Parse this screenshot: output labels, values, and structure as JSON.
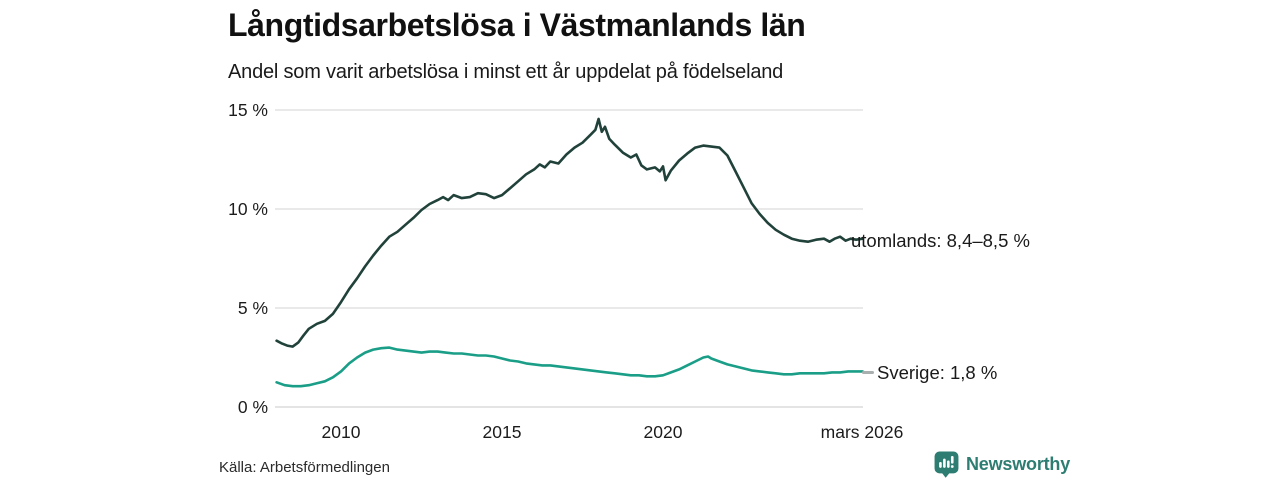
{
  "title": "Långtidsarbetslösa i Västmanlands län",
  "subtitle": "Andel som varit arbetslösa i minst ett år uppdelat på födelseland",
  "source": "Källa: Arbetsförmedlingen",
  "branding": {
    "name": "Newsworthy",
    "icon": "newsworthy-speech-bubble-barchart-icon",
    "color": "#2e7d73"
  },
  "colors": {
    "utomlands_line": "#21423a",
    "sverige_line": "#1a9e87",
    "grid": "#dcdcdc",
    "connector": "#a9aeae",
    "text": "#1a1a1a",
    "background": "#ffffff"
  },
  "chart_data": {
    "type": "line",
    "title": "Långtidsarbetslösa i Västmanlands län",
    "subtitle": "Andel som varit arbetslösa i minst ett år uppdelat på födelseland",
    "unit": "%",
    "grid": "horizontal",
    "legend_position": "line-end-labels",
    "x_axis": {
      "ticks": [
        "2010",
        "2015",
        "2020",
        "mars 2026"
      ],
      "tick_years": [
        2010,
        2015,
        2020,
        2026.2
      ],
      "range": [
        2008.0,
        2026.35
      ]
    },
    "y_axis": {
      "ticks": [
        "15 %",
        "10 %",
        "5 %",
        "0 %"
      ],
      "tick_values": [
        15,
        10,
        5,
        0
      ],
      "range": [
        0,
        15
      ]
    },
    "series": [
      {
        "name": "utomlands",
        "label": "utomlands: 8,4–8,5 %",
        "last_value_text": "8,4–8,5 %",
        "color": "#21423a",
        "points": [
          [
            2008.0,
            3.35
          ],
          [
            2008.17,
            3.2
          ],
          [
            2008.33,
            3.1
          ],
          [
            2008.5,
            3.05
          ],
          [
            2008.67,
            3.25
          ],
          [
            2008.83,
            3.6
          ],
          [
            2009.0,
            3.95
          ],
          [
            2009.25,
            4.2
          ],
          [
            2009.5,
            4.35
          ],
          [
            2009.75,
            4.7
          ],
          [
            2010.0,
            5.3
          ],
          [
            2010.25,
            5.95
          ],
          [
            2010.5,
            6.5
          ],
          [
            2010.75,
            7.1
          ],
          [
            2011.0,
            7.65
          ],
          [
            2011.25,
            8.15
          ],
          [
            2011.5,
            8.6
          ],
          [
            2011.75,
            8.85
          ],
          [
            2012.0,
            9.2
          ],
          [
            2012.25,
            9.55
          ],
          [
            2012.5,
            9.95
          ],
          [
            2012.75,
            10.25
          ],
          [
            2013.0,
            10.45
          ],
          [
            2013.17,
            10.6
          ],
          [
            2013.33,
            10.45
          ],
          [
            2013.5,
            10.7
          ],
          [
            2013.75,
            10.55
          ],
          [
            2014.0,
            10.6
          ],
          [
            2014.25,
            10.8
          ],
          [
            2014.5,
            10.75
          ],
          [
            2014.75,
            10.55
          ],
          [
            2015.0,
            10.7
          ],
          [
            2015.25,
            11.05
          ],
          [
            2015.5,
            11.4
          ],
          [
            2015.75,
            11.75
          ],
          [
            2016.0,
            12.0
          ],
          [
            2016.17,
            12.25
          ],
          [
            2016.33,
            12.1
          ],
          [
            2016.5,
            12.4
          ],
          [
            2016.75,
            12.3
          ],
          [
            2017.0,
            12.75
          ],
          [
            2017.25,
            13.1
          ],
          [
            2017.5,
            13.35
          ],
          [
            2017.75,
            13.75
          ],
          [
            2017.9,
            14.0
          ],
          [
            2018.0,
            14.55
          ],
          [
            2018.1,
            13.9
          ],
          [
            2018.2,
            14.15
          ],
          [
            2018.33,
            13.55
          ],
          [
            2018.5,
            13.25
          ],
          [
            2018.75,
            12.85
          ],
          [
            2019.0,
            12.6
          ],
          [
            2019.17,
            12.75
          ],
          [
            2019.33,
            12.2
          ],
          [
            2019.5,
            12.0
          ],
          [
            2019.75,
            12.1
          ],
          [
            2019.9,
            11.9
          ],
          [
            2020.0,
            12.15
          ],
          [
            2020.08,
            11.45
          ],
          [
            2020.25,
            11.95
          ],
          [
            2020.5,
            12.45
          ],
          [
            2020.75,
            12.8
          ],
          [
            2021.0,
            13.1
          ],
          [
            2021.25,
            13.2
          ],
          [
            2021.5,
            13.15
          ],
          [
            2021.75,
            13.1
          ],
          [
            2022.0,
            12.7
          ],
          [
            2022.25,
            11.9
          ],
          [
            2022.5,
            11.1
          ],
          [
            2022.75,
            10.3
          ],
          [
            2023.0,
            9.75
          ],
          [
            2023.25,
            9.3
          ],
          [
            2023.5,
            8.95
          ],
          [
            2023.75,
            8.7
          ],
          [
            2024.0,
            8.5
          ],
          [
            2024.25,
            8.4
          ],
          [
            2024.5,
            8.35
          ],
          [
            2024.75,
            8.45
          ],
          [
            2025.0,
            8.5
          ],
          [
            2025.17,
            8.35
          ],
          [
            2025.33,
            8.5
          ],
          [
            2025.5,
            8.6
          ],
          [
            2025.67,
            8.4
          ],
          [
            2025.83,
            8.5
          ],
          [
            2026.0,
            8.45
          ],
          [
            2026.2,
            8.5
          ]
        ]
      },
      {
        "name": "Sverige",
        "label": "Sverige: 1,8 %",
        "last_value_text": "1,8 %",
        "color": "#1a9e87",
        "points": [
          [
            2008.0,
            1.25
          ],
          [
            2008.25,
            1.1
          ],
          [
            2008.5,
            1.05
          ],
          [
            2008.75,
            1.05
          ],
          [
            2009.0,
            1.1
          ],
          [
            2009.25,
            1.2
          ],
          [
            2009.5,
            1.3
          ],
          [
            2009.75,
            1.5
          ],
          [
            2010.0,
            1.8
          ],
          [
            2010.25,
            2.2
          ],
          [
            2010.5,
            2.5
          ],
          [
            2010.75,
            2.75
          ],
          [
            2011.0,
            2.9
          ],
          [
            2011.25,
            2.97
          ],
          [
            2011.5,
            3.0
          ],
          [
            2011.75,
            2.9
          ],
          [
            2012.0,
            2.85
          ],
          [
            2012.25,
            2.8
          ],
          [
            2012.5,
            2.75
          ],
          [
            2012.75,
            2.8
          ],
          [
            2013.0,
            2.8
          ],
          [
            2013.25,
            2.75
          ],
          [
            2013.5,
            2.7
          ],
          [
            2013.75,
            2.7
          ],
          [
            2014.0,
            2.65
          ],
          [
            2014.25,
            2.6
          ],
          [
            2014.5,
            2.6
          ],
          [
            2014.75,
            2.55
          ],
          [
            2015.0,
            2.45
          ],
          [
            2015.25,
            2.35
          ],
          [
            2015.5,
            2.3
          ],
          [
            2015.75,
            2.2
          ],
          [
            2016.0,
            2.15
          ],
          [
            2016.25,
            2.1
          ],
          [
            2016.5,
            2.1
          ],
          [
            2016.75,
            2.05
          ],
          [
            2017.0,
            2.0
          ],
          [
            2017.25,
            1.95
          ],
          [
            2017.5,
            1.9
          ],
          [
            2017.75,
            1.85
          ],
          [
            2018.0,
            1.8
          ],
          [
            2018.25,
            1.75
          ],
          [
            2018.5,
            1.7
          ],
          [
            2018.75,
            1.65
          ],
          [
            2019.0,
            1.6
          ],
          [
            2019.25,
            1.6
          ],
          [
            2019.5,
            1.55
          ],
          [
            2019.75,
            1.55
          ],
          [
            2020.0,
            1.6
          ],
          [
            2020.25,
            1.75
          ],
          [
            2020.5,
            1.9
          ],
          [
            2020.75,
            2.1
          ],
          [
            2021.0,
            2.3
          ],
          [
            2021.25,
            2.5
          ],
          [
            2021.4,
            2.55
          ],
          [
            2021.5,
            2.45
          ],
          [
            2021.75,
            2.3
          ],
          [
            2022.0,
            2.15
          ],
          [
            2022.25,
            2.05
          ],
          [
            2022.5,
            1.95
          ],
          [
            2022.75,
            1.85
          ],
          [
            2023.0,
            1.8
          ],
          [
            2023.25,
            1.75
          ],
          [
            2023.5,
            1.7
          ],
          [
            2023.75,
            1.65
          ],
          [
            2024.0,
            1.65
          ],
          [
            2024.25,
            1.7
          ],
          [
            2024.5,
            1.7
          ],
          [
            2024.75,
            1.7
          ],
          [
            2025.0,
            1.7
          ],
          [
            2025.25,
            1.75
          ],
          [
            2025.5,
            1.75
          ],
          [
            2025.75,
            1.8
          ],
          [
            2026.0,
            1.8
          ],
          [
            2026.2,
            1.8
          ]
        ]
      }
    ]
  }
}
